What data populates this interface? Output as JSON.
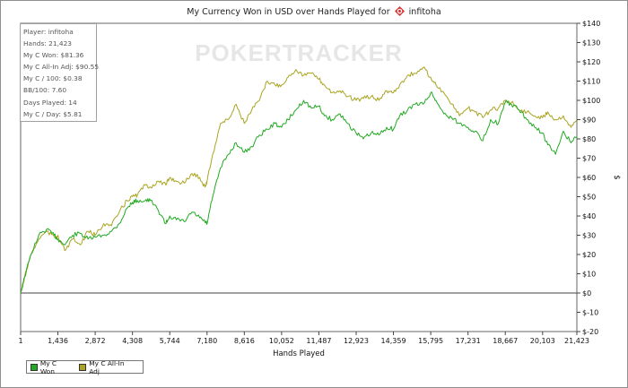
{
  "chart_data": {
    "type": "line",
    "title": "My Currency Won in USD over Hands Played for",
    "player_name": "infitoha",
    "xlabel": "Hands Played",
    "ylabel": "$",
    "xlim": [
      1,
      21423
    ],
    "ylim": [
      -20,
      140
    ],
    "x_ticks": [
      1,
      1436,
      2872,
      4308,
      5744,
      7180,
      8616,
      10052,
      11487,
      12923,
      14359,
      15795,
      17231,
      18667,
      20103,
      21423
    ],
    "y_ticks": [
      -20,
      -10,
      0,
      10,
      20,
      30,
      40,
      50,
      60,
      70,
      80,
      90,
      100,
      110,
      120,
      130,
      140
    ],
    "y_tick_labels": [
      "$-20",
      "$-10",
      "$0",
      "$10",
      "$20",
      "$30",
      "$40",
      "$50",
      "$60",
      "$70",
      "$80",
      "$90",
      "$100",
      "$110",
      "$120",
      "$130",
      "$140"
    ],
    "legend_position": "bottom-left",
    "watermark": "POKERTRACKER",
    "series": [
      {
        "name": "My C Won",
        "color": "#22aa22",
        "x": [
          1,
          150,
          400,
          700,
          1000,
          1300,
          1436,
          1700,
          2000,
          2300,
          2600,
          2872,
          3200,
          3500,
          3800,
          4100,
          4308,
          4500,
          4800,
          5000,
          5300,
          5600,
          5744,
          6000,
          6300,
          6600,
          6900,
          7100,
          7180,
          7400,
          7700,
          8000,
          8300,
          8616,
          8900,
          9200,
          9500,
          9800,
          10052,
          10300,
          10600,
          10900,
          11200,
          11487,
          11700,
          12000,
          12300,
          12600,
          12923,
          13200,
          13500,
          13800,
          14100,
          14359,
          14600,
          14900,
          15200,
          15500,
          15795,
          16000,
          16300,
          16600,
          16900,
          17231,
          17500,
          17800,
          18100,
          18400,
          18667,
          18900,
          19200,
          19500,
          19800,
          20103,
          20300,
          20600,
          20900,
          21200,
          21423
        ],
        "y": [
          0,
          8,
          20,
          30,
          33,
          30,
          28,
          25,
          30,
          31,
          28,
          29,
          30,
          32,
          36,
          44,
          47,
          48,
          48,
          48,
          43,
          36,
          40,
          38,
          37,
          42,
          39,
          37,
          36,
          50,
          65,
          72,
          78,
          73,
          76,
          82,
          85,
          88,
          86,
          90,
          95,
          100,
          96,
          97,
          92,
          90,
          93,
          88,
          83,
          80,
          83,
          82,
          86,
          85,
          92,
          95,
          98,
          98,
          104,
          100,
          93,
          91,
          88,
          86,
          84,
          79,
          90,
          88,
          99,
          98,
          95,
          90,
          86,
          83,
          77,
          72,
          84,
          78,
          81
        ]
      },
      {
        "name": "My C All-In Adj",
        "color": "#aaa422",
        "x": [
          1,
          150,
          400,
          700,
          1000,
          1300,
          1436,
          1700,
          2000,
          2300,
          2600,
          2872,
          3200,
          3500,
          3800,
          4100,
          4308,
          4500,
          4800,
          5000,
          5300,
          5600,
          5744,
          6000,
          6300,
          6600,
          6900,
          7100,
          7180,
          7400,
          7700,
          8000,
          8300,
          8616,
          8900,
          9200,
          9500,
          9800,
          10052,
          10300,
          10600,
          10900,
          11200,
          11487,
          11700,
          12000,
          12300,
          12600,
          12923,
          13200,
          13500,
          13800,
          14100,
          14359,
          14600,
          14900,
          15200,
          15500,
          15795,
          16000,
          16300,
          16600,
          16900,
          17231,
          17500,
          17800,
          18100,
          18400,
          18667,
          18900,
          19200,
          19500,
          19800,
          20103,
          20300,
          20600,
          20900,
          21200,
          21423
        ],
        "y": [
          0,
          8,
          20,
          28,
          32,
          29,
          30,
          22,
          28,
          25,
          32,
          30,
          36,
          35,
          42,
          48,
          50,
          51,
          56,
          55,
          58,
          56,
          60,
          58,
          57,
          62,
          60,
          55,
          58,
          72,
          88,
          90,
          98,
          88,
          95,
          100,
          110,
          108,
          108,
          112,
          116,
          113,
          114,
          111,
          108,
          104,
          105,
          102,
          100,
          101,
          102,
          100,
          105,
          104,
          108,
          113,
          114,
          117,
          112,
          108,
          104,
          98,
          92,
          96,
          94,
          91,
          95,
          96,
          100,
          99,
          95,
          94,
          92,
          91,
          94,
          90,
          92,
          86,
          90
        ]
      }
    ]
  },
  "info_box": {
    "player": "Player: infitoha",
    "hands": "Hands: 21,423",
    "won": "My C Won: $81.36",
    "allin_adj": "My C All-In Adj: $90.55",
    "per100": "My C / 100: $0.38",
    "bb100": "BB/100: 7.60",
    "days": "Days Played: 14",
    "perday": "My C / Day: $5.81"
  }
}
